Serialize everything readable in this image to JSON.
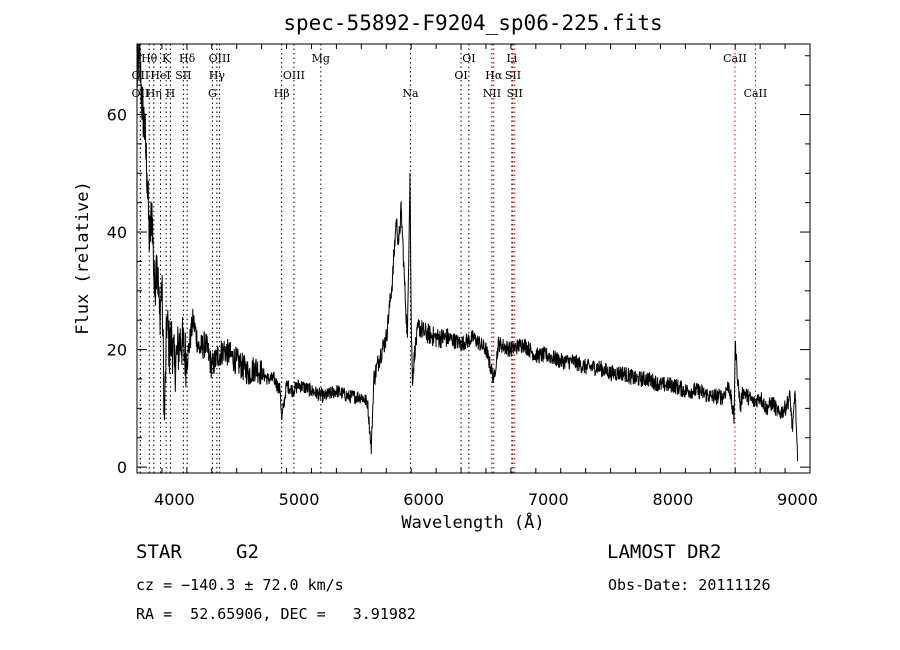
{
  "chart_data": {
    "type": "line",
    "title": "spec-55892-F9204_sp06-225.fits",
    "xlabel": "Wavelength (Å)",
    "ylabel": "Flux (relative)",
    "xlim": [
      3700,
      9100
    ],
    "ylim": [
      -1,
      72
    ],
    "xticks": [
      4000,
      5000,
      6000,
      7000,
      8000,
      9000
    ],
    "yticks": [
      0,
      20,
      40,
      60
    ],
    "grid": false,
    "series": [
      {
        "color": "#000000",
        "x": [
          3700,
          3720,
          3740,
          3760,
          3780,
          3800,
          3820,
          3840,
          3860,
          3880,
          3900,
          3920,
          3940,
          3960,
          3980,
          4000,
          4050,
          4100,
          4150,
          4200,
          4250,
          4300,
          4350,
          4400,
          4450,
          4500,
          4550,
          4600,
          4650,
          4700,
          4750,
          4800,
          4850,
          4861,
          4900,
          4950,
          5000,
          5100,
          5200,
          5300,
          5400,
          5500,
          5550,
          5580,
          5600,
          5650,
          5700,
          5750,
          5780,
          5800,
          5820,
          5850,
          5870,
          5890,
          5900,
          5910,
          5930,
          5960,
          6000,
          6100,
          6200,
          6300,
          6400,
          6500,
          6563,
          6600,
          6700,
          6800,
          6900,
          7000,
          7100,
          7200,
          7300,
          7400,
          7500,
          7600,
          7700,
          7800,
          7900,
          8000,
          8100,
          8200,
          8300,
          8400,
          8450,
          8490,
          8500,
          8520,
          8542,
          8560,
          8600,
          8650,
          8700,
          8750,
          8800,
          8850,
          8900,
          8940,
          8960,
          8980,
          9000
        ],
        "y": [
          66,
          70,
          62,
          58,
          50,
          38,
          44,
          30,
          36,
          26,
          31,
          8,
          25,
          20,
          22,
          17,
          22,
          18,
          25,
          20,
          21,
          17,
          19,
          20,
          19,
          18,
          17,
          16,
          17,
          16,
          15,
          15,
          13,
          8,
          14,
          13,
          14,
          13,
          12,
          13,
          12,
          12,
          11,
          3,
          15,
          19,
          22,
          32,
          42,
          38,
          44,
          30,
          22,
          50,
          25,
          15,
          20,
          24,
          23,
          22,
          22,
          21,
          22,
          20,
          15,
          21,
          20,
          21,
          19,
          19,
          18,
          18,
          17,
          17,
          16,
          16,
          15,
          15,
          14,
          14,
          13,
          13,
          12,
          12,
          14,
          8,
          21,
          15,
          10,
          13,
          12,
          11,
          12,
          10,
          11,
          9,
          10,
          12,
          6,
          13,
          1
        ]
      }
    ],
    "line_markers": [
      {
        "label": "OII",
        "wavelength": 3727,
        "color": "#000000",
        "row": 2
      },
      {
        "label": "OII",
        "wavelength": 3727,
        "color": "#000000",
        "row": 3
      },
      {
        "label": "Hθ",
        "wavelength": 3798,
        "color": "#000000",
        "row": 1
      },
      {
        "label": "Hη",
        "wavelength": 3835,
        "color": "#000000",
        "row": 3
      },
      {
        "label": "HeI",
        "wavelength": 3889,
        "color": "#000000",
        "row": 2
      },
      {
        "label": "K",
        "wavelength": 3934,
        "color": "#000000",
        "row": 1
      },
      {
        "label": "H",
        "wavelength": 3968,
        "color": "#000000",
        "row": 3
      },
      {
        "label": "SII",
        "wavelength": 4072,
        "color": "#000000",
        "row": 2
      },
      {
        "label": "Hδ",
        "wavelength": 4102,
        "color": "#000000",
        "row": 1
      },
      {
        "label": "G",
        "wavelength": 4305,
        "color": "#000000",
        "row": 3
      },
      {
        "label": "Hγ",
        "wavelength": 4341,
        "color": "#000000",
        "row": 2
      },
      {
        "label": "OIII",
        "wavelength": 4363,
        "color": "#000000",
        "row": 1
      },
      {
        "label": "Hβ",
        "wavelength": 4861,
        "color": "#000000",
        "row": 3
      },
      {
        "label": "OIII",
        "wavelength": 4959,
        "color": "#000000",
        "row": 2
      },
      {
        "label": "Mg",
        "wavelength": 5175,
        "color": "#000000",
        "row": 1
      },
      {
        "label": "Na",
        "wavelength": 5894,
        "color": "#000000",
        "row": 3
      },
      {
        "label": "OI",
        "wavelength": 6300,
        "color": "#000000",
        "row": 2
      },
      {
        "label": "OI",
        "wavelength": 6363,
        "color": "#000000",
        "row": 1
      },
      {
        "label": "NII",
        "wavelength": 6548,
        "color": "#000000",
        "row": 3
      },
      {
        "label": "Hα",
        "wavelength": 6563,
        "color": "#cc0000",
        "row": 2
      },
      {
        "label": "Li",
        "wavelength": 6708,
        "color": "#000000",
        "row": 1
      },
      {
        "label": "SII",
        "wavelength": 6717,
        "color": "#cc0000",
        "row": 2
      },
      {
        "label": "SII",
        "wavelength": 6731,
        "color": "#cc0000",
        "row": 3
      },
      {
        "label": "CaII",
        "wavelength": 8498,
        "color": "#cc0000",
        "row": 1
      },
      {
        "label": "CaII",
        "wavelength": 8662,
        "color": "#cc0000",
        "row": 3
      }
    ]
  },
  "info": {
    "object_class": "STAR",
    "subclass": "G2",
    "survey": "LAMOST DR2",
    "redshift_line": "cz = −140.3 ± 72.0 km/s",
    "obs_date_line": "Obs-Date: 20111126",
    "coords_line": "RA =  52.65906, DEC =   3.91982"
  }
}
